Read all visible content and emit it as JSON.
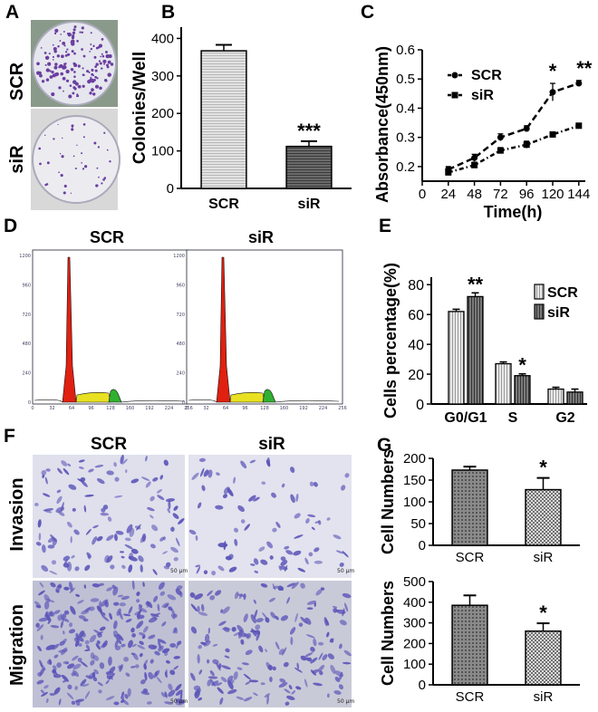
{
  "panels": {
    "A": "A",
    "B": "B",
    "C": "C",
    "D": "D",
    "E": "E",
    "F": "F",
    "G": "G"
  },
  "groups": [
    "SCR",
    "siR"
  ],
  "panel_a": {
    "rows": [
      "SCR",
      "siR"
    ]
  },
  "panel_d": {
    "titles": [
      "SCR",
      "siR"
    ]
  },
  "panel_f": {
    "cols": [
      "SCR",
      "siR"
    ],
    "rows": [
      "Invasion",
      "Migration"
    ],
    "scale": "50 μm"
  },
  "colors": {
    "scr": "#dcdcdc",
    "sir": "#555555",
    "cellstain": "#5b54b8",
    "g1peak": "#e02010",
    "s_phase": "#e8e020",
    "g2peak": "#30b030"
  },
  "chart_data": [
    {
      "id": "B",
      "type": "bar",
      "categories": [
        "SCR",
        "siR"
      ],
      "values": [
        367,
        112
      ],
      "errors": [
        16,
        14
      ],
      "ylabel": "Colonies/Well",
      "ylim": [
        0,
        430
      ],
      "yticks": [
        0,
        100,
        200,
        300,
        400
      ],
      "annotations": [
        {
          "category": "siR",
          "text": "***"
        }
      ]
    },
    {
      "id": "C",
      "type": "line",
      "x": [
        24,
        48,
        72,
        96,
        120,
        144
      ],
      "series": [
        {
          "name": "SCR",
          "values": [
            0.19,
            0.23,
            0.3,
            0.33,
            0.455,
            0.485
          ],
          "errors": [
            0.01,
            0.012,
            0.012,
            0.01,
            0.03,
            0.01
          ]
        },
        {
          "name": "siR",
          "values": [
            0.18,
            0.205,
            0.255,
            0.275,
            0.31,
            0.34
          ],
          "errors": [
            0.01,
            0.01,
            0.01,
            0.012,
            0.008,
            0.008
          ]
        }
      ],
      "xlabel": "Time(h)",
      "ylabel": "Absorbance(450nm)",
      "xlim": [
        0,
        150
      ],
      "ylim": [
        0.15,
        0.6
      ],
      "xticks": [
        0,
        24,
        48,
        72,
        96,
        120,
        144
      ],
      "yticks": [
        0.2,
        0.3,
        0.4,
        0.5,
        0.6
      ],
      "legend": "top-left",
      "annotations": [
        {
          "x": 120,
          "text": "*"
        },
        {
          "x": 144,
          "text": "**"
        }
      ]
    },
    {
      "id": "E",
      "type": "bar",
      "categories": [
        "G0/G1",
        "S",
        "G2"
      ],
      "series": [
        {
          "name": "SCR",
          "values": [
            62,
            27,
            10
          ],
          "errors": [
            1.5,
            1.2,
            1.2
          ]
        },
        {
          "name": "siR",
          "values": [
            72,
            19,
            8
          ],
          "errors": [
            2.5,
            1.2,
            2.0
          ]
        }
      ],
      "ylabel": "Cells percentage(%)",
      "ylim": [
        0,
        85
      ],
      "yticks": [
        0,
        20,
        40,
        60,
        80
      ],
      "legend": "right",
      "annotations": [
        {
          "category": "G0/G1",
          "text": "**"
        },
        {
          "category": "S",
          "text": "*"
        }
      ]
    },
    {
      "id": "G_invasion",
      "type": "bar",
      "categories": [
        "SCR",
        "siR"
      ],
      "values": [
        173,
        128
      ],
      "errors": [
        8,
        27
      ],
      "ylabel": "Cell Numbers",
      "ylim": [
        0,
        200
      ],
      "yticks": [
        0,
        50,
        100,
        150,
        200
      ],
      "annotations": [
        {
          "category": "siR",
          "text": "*"
        }
      ]
    },
    {
      "id": "G_migration",
      "type": "bar",
      "categories": [
        "SCR",
        "siR"
      ],
      "values": [
        385,
        260
      ],
      "errors": [
        48,
        38
      ],
      "ylabel": "Cell Numbers",
      "ylim": [
        0,
        500
      ],
      "yticks": [
        0,
        100,
        200,
        300,
        400,
        500
      ],
      "annotations": [
        {
          "category": "siR",
          "text": "*"
        }
      ]
    }
  ]
}
